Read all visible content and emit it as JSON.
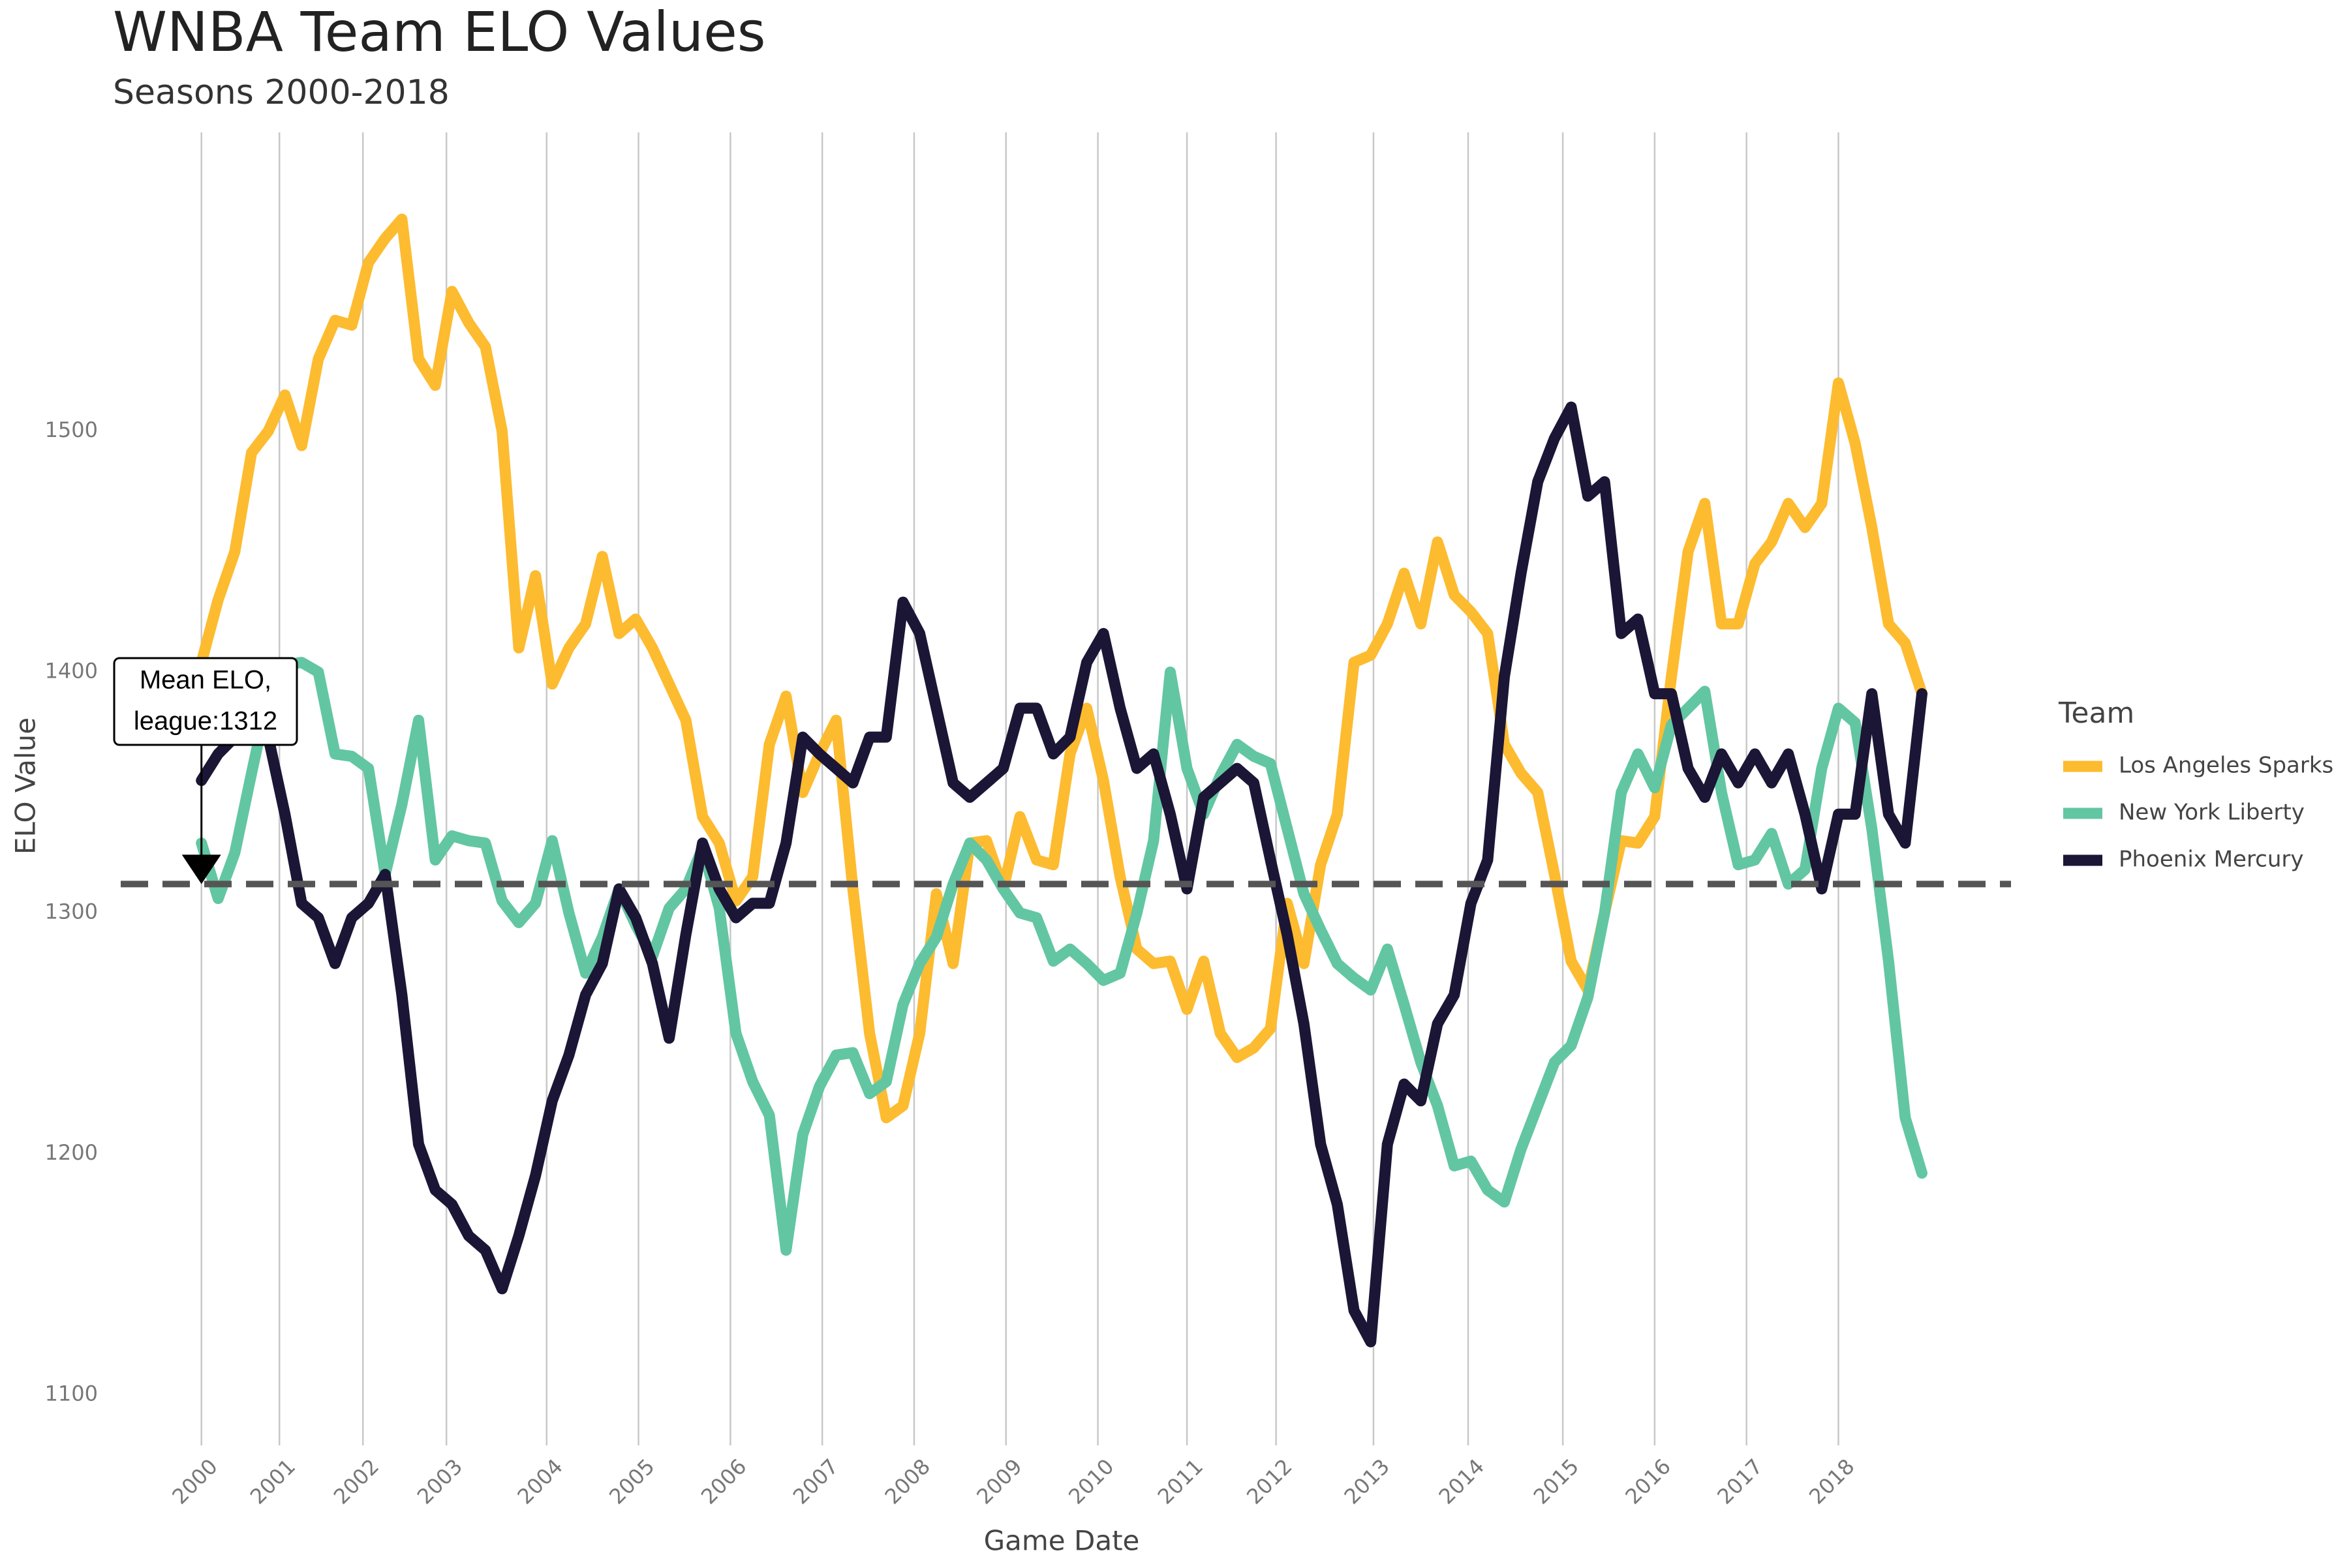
{
  "chart_data": {
    "type": "line",
    "title": "WNBA Team ELO Values",
    "subtitle": "Seasons 2000-2018",
    "x_label": "Game Date",
    "y_label": "ELO Value",
    "legend_title": "Team",
    "legend_position": "right",
    "annotation": [
      "Mean ELO,",
      "league:1312"
    ],
    "hline": 1312,
    "xlim": [
      -29,
      650
    ],
    "ylim": [
      1079,
      1624
    ],
    "xticks": [
      {
        "value": 0,
        "label": "2000"
      },
      {
        "value": 28,
        "label": "2001"
      },
      {
        "value": 58,
        "label": "2002"
      },
      {
        "value": 88,
        "label": "2003"
      },
      {
        "value": 124,
        "label": "2004"
      },
      {
        "value": 157,
        "label": "2005"
      },
      {
        "value": 190,
        "label": "2006"
      },
      {
        "value": 223,
        "label": "2007"
      },
      {
        "value": 256,
        "label": "2008"
      },
      {
        "value": 289,
        "label": "2009"
      },
      {
        "value": 322,
        "label": "2010"
      },
      {
        "value": 354,
        "label": "2011"
      },
      {
        "value": 386,
        "label": "2012"
      },
      {
        "value": 421,
        "label": "2013"
      },
      {
        "value": 455,
        "label": "2014"
      },
      {
        "value": 489,
        "label": "2015"
      },
      {
        "value": 522,
        "label": "2016"
      },
      {
        "value": 555,
        "label": "2017"
      },
      {
        "value": 588,
        "label": "2018"
      }
    ],
    "yticks": [
      1100,
      1200,
      1300,
      1400,
      1500
    ],
    "x": [
      0,
      6,
      12,
      18,
      24,
      30,
      36,
      42,
      48,
      54,
      60,
      66,
      72,
      78,
      84,
      90,
      96,
      102,
      108,
      114,
      120,
      126,
      132,
      138,
      144,
      150,
      156,
      162,
      168,
      174,
      180,
      186,
      192,
      198,
      204,
      210,
      216,
      222,
      228,
      234,
      240,
      246,
      252,
      258,
      264,
      270,
      276,
      282,
      288,
      294,
      300,
      306,
      312,
      318,
      324,
      330,
      336,
      342,
      348,
      354,
      360,
      366,
      372,
      378,
      384,
      390,
      396,
      402,
      408,
      414,
      420,
      426,
      432,
      438,
      444,
      450,
      456,
      462,
      468,
      474,
      480,
      486,
      492,
      498,
      504,
      510,
      516,
      522,
      528,
      534,
      540,
      546,
      552,
      558,
      564,
      570,
      576,
      582,
      588,
      594,
      600,
      606,
      612,
      618
    ],
    "series": [
      {
        "name": "Los Angeles Sparks",
        "color": "#FDBB30",
        "values": [
          1404,
          1430,
          1450,
          1491,
          1500,
          1515,
          1494,
          1530,
          1546,
          1544,
          1570,
          1580,
          1588,
          1530,
          1519,
          1558,
          1545,
          1535,
          1500,
          1410,
          1440,
          1395,
          1410,
          1420,
          1448,
          1416,
          1422,
          1410,
          1395,
          1380,
          1340,
          1329,
          1305,
          1315,
          1370,
          1390,
          1350,
          1366,
          1380,
          1310,
          1250,
          1215,
          1220,
          1250,
          1308,
          1279,
          1329,
          1330,
          1310,
          1340,
          1322,
          1320,
          1366,
          1385,
          1355,
          1315,
          1285,
          1279,
          1280,
          1260,
          1280,
          1250,
          1240,
          1244,
          1252,
          1304,
          1279,
          1320,
          1341,
          1404,
          1407,
          1420,
          1441,
          1420,
          1454,
          1432,
          1425,
          1416,
          1370,
          1358,
          1350,
          1316,
          1280,
          1268,
          1300,
          1330,
          1329,
          1340,
          1398,
          1450,
          1470,
          1420,
          1420,
          1445,
          1454,
          1470,
          1460,
          1470,
          1520,
          1495,
          1460,
          1420,
          1412,
          1391
        ]
      },
      {
        "name": "New York Liberty",
        "color": "#62C6A2",
        "values": [
          1329,
          1306,
          1325,
          1358,
          1390,
          1403,
          1404,
          1400,
          1366,
          1365,
          1360,
          1316,
          1345,
          1380,
          1322,
          1332,
          1330,
          1329,
          1305,
          1296,
          1304,
          1330,
          1300,
          1275,
          1290,
          1310,
          1295,
          1282,
          1302,
          1310,
          1327,
          1302,
          1250,
          1230,
          1216,
          1160,
          1208,
          1228,
          1241,
          1242,
          1225,
          1230,
          1262,
          1279,
          1290,
          1312,
          1329,
          1322,
          1310,
          1300,
          1298,
          1280,
          1285,
          1279,
          1272,
          1275,
          1300,
          1330,
          1400,
          1360,
          1341,
          1357,
          1370,
          1365,
          1362,
          1335,
          1308,
          1293,
          1279,
          1273,
          1268,
          1285,
          1262,
          1238,
          1220,
          1195,
          1197,
          1185,
          1180,
          1202,
          1220,
          1238,
          1245,
          1265,
          1300,
          1350,
          1366,
          1352,
          1378,
          1385,
          1392,
          1350,
          1320,
          1322,
          1333,
          1312,
          1318,
          1360,
          1385,
          1379,
          1335,
          1280,
          1215,
          1192
        ]
      },
      {
        "name": "Phoenix Mercury",
        "color": "#1B1536",
        "values": [
          1355,
          1366,
          1373,
          1385,
          1373,
          1341,
          1304,
          1298,
          1279,
          1298,
          1304,
          1316,
          1266,
          1204,
          1185,
          1179,
          1166,
          1160,
          1144,
          1166,
          1191,
          1222,
          1241,
          1266,
          1279,
          1310,
          1298,
          1279,
          1248,
          1291,
          1329,
          1310,
          1298,
          1304,
          1304,
          1329,
          1373,
          1366,
          1360,
          1354,
          1373,
          1373,
          1429,
          1416,
          1385,
          1354,
          1348,
          1354,
          1360,
          1385,
          1385,
          1366,
          1373,
          1404,
          1416,
          1385,
          1360,
          1366,
          1341,
          1310,
          1348,
          1354,
          1360,
          1354,
          1322,
          1291,
          1254,
          1204,
          1179,
          1135,
          1122,
          1204,
          1229,
          1222,
          1254,
          1266,
          1304,
          1322,
          1398,
          1441,
          1479,
          1497,
          1510,
          1473,
          1479,
          1416,
          1422,
          1391,
          1391,
          1360,
          1348,
          1366,
          1354,
          1366,
          1354,
          1366,
          1341,
          1310,
          1341,
          1341,
          1391,
          1341,
          1329,
          1391
        ]
      }
    ]
  }
}
